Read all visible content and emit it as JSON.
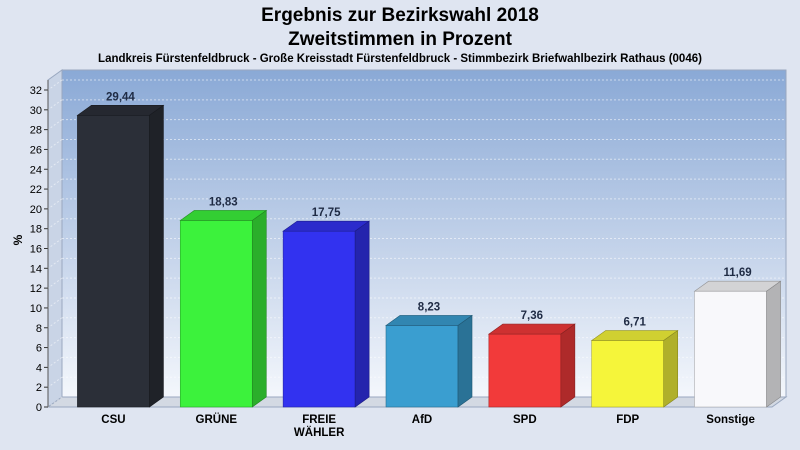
{
  "title_line1": "Ergebnis zur Bezirkswahl 2018",
  "title_line2": "Zweitstimmen in Prozent",
  "subtitle": "Landkreis Fürstenfeldbruck - Große Kreisstadt Fürstenfeldbruck - Stimmbezirk Briefwahlbezirk Rathaus (0046)",
  "chart_data": {
    "type": "bar",
    "ylabel": "%",
    "ylim": [
      0,
      32
    ],
    "ytick_step": 2,
    "grid": true,
    "categories": [
      [
        "CSU"
      ],
      [
        "GRÜNE"
      ],
      [
        "FREIE",
        "WÄHLER"
      ],
      [
        "AfD"
      ],
      [
        "SPD"
      ],
      [
        "FDP"
      ],
      [
        "Sonstige"
      ]
    ],
    "values": [
      29.44,
      18.83,
      17.75,
      8.23,
      7.36,
      6.71,
      11.69
    ],
    "value_labels": [
      "29,44",
      "18,83",
      "17,75",
      "8,23",
      "7,36",
      "6,71",
      "11,69"
    ],
    "colors": [
      "#2b2f38",
      "#3cf23c",
      "#3232f0",
      "#3a9ed0",
      "#f23a3a",
      "#f5f53a",
      "#f8f8fb"
    ]
  }
}
